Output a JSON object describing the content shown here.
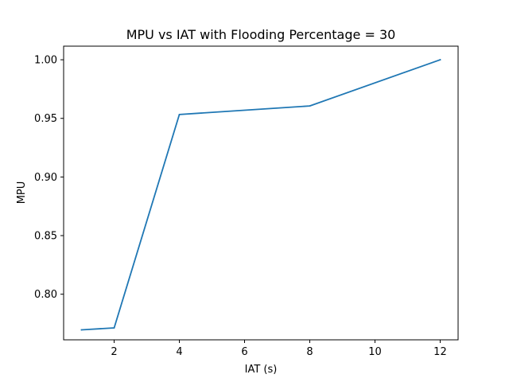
{
  "chart_data": {
    "type": "line",
    "title": "MPU vs IAT with Flooding Percentage = 30",
    "xlabel": "IAT (s)",
    "ylabel": "MPU",
    "xlim": [
      0.45,
      12.55
    ],
    "ylim": [
      0.7611,
      1.0116
    ],
    "xticks": [
      2,
      4,
      6,
      8,
      10,
      12
    ],
    "xtick_labels": [
      "2",
      "4",
      "6",
      "8",
      "10",
      "12"
    ],
    "yticks": [
      0.8,
      0.85,
      0.9,
      0.95,
      1.0
    ],
    "ytick_labels": [
      "0.80",
      "0.85",
      "0.90",
      "0.95",
      "1.00"
    ],
    "grid": false,
    "series": [
      {
        "color": "#1f77b4",
        "x": [
          1,
          2,
          4,
          8,
          12
        ],
        "y": [
          0.7696,
          0.7713,
          0.9533,
          0.9606,
          1.0
        ]
      }
    ]
  }
}
